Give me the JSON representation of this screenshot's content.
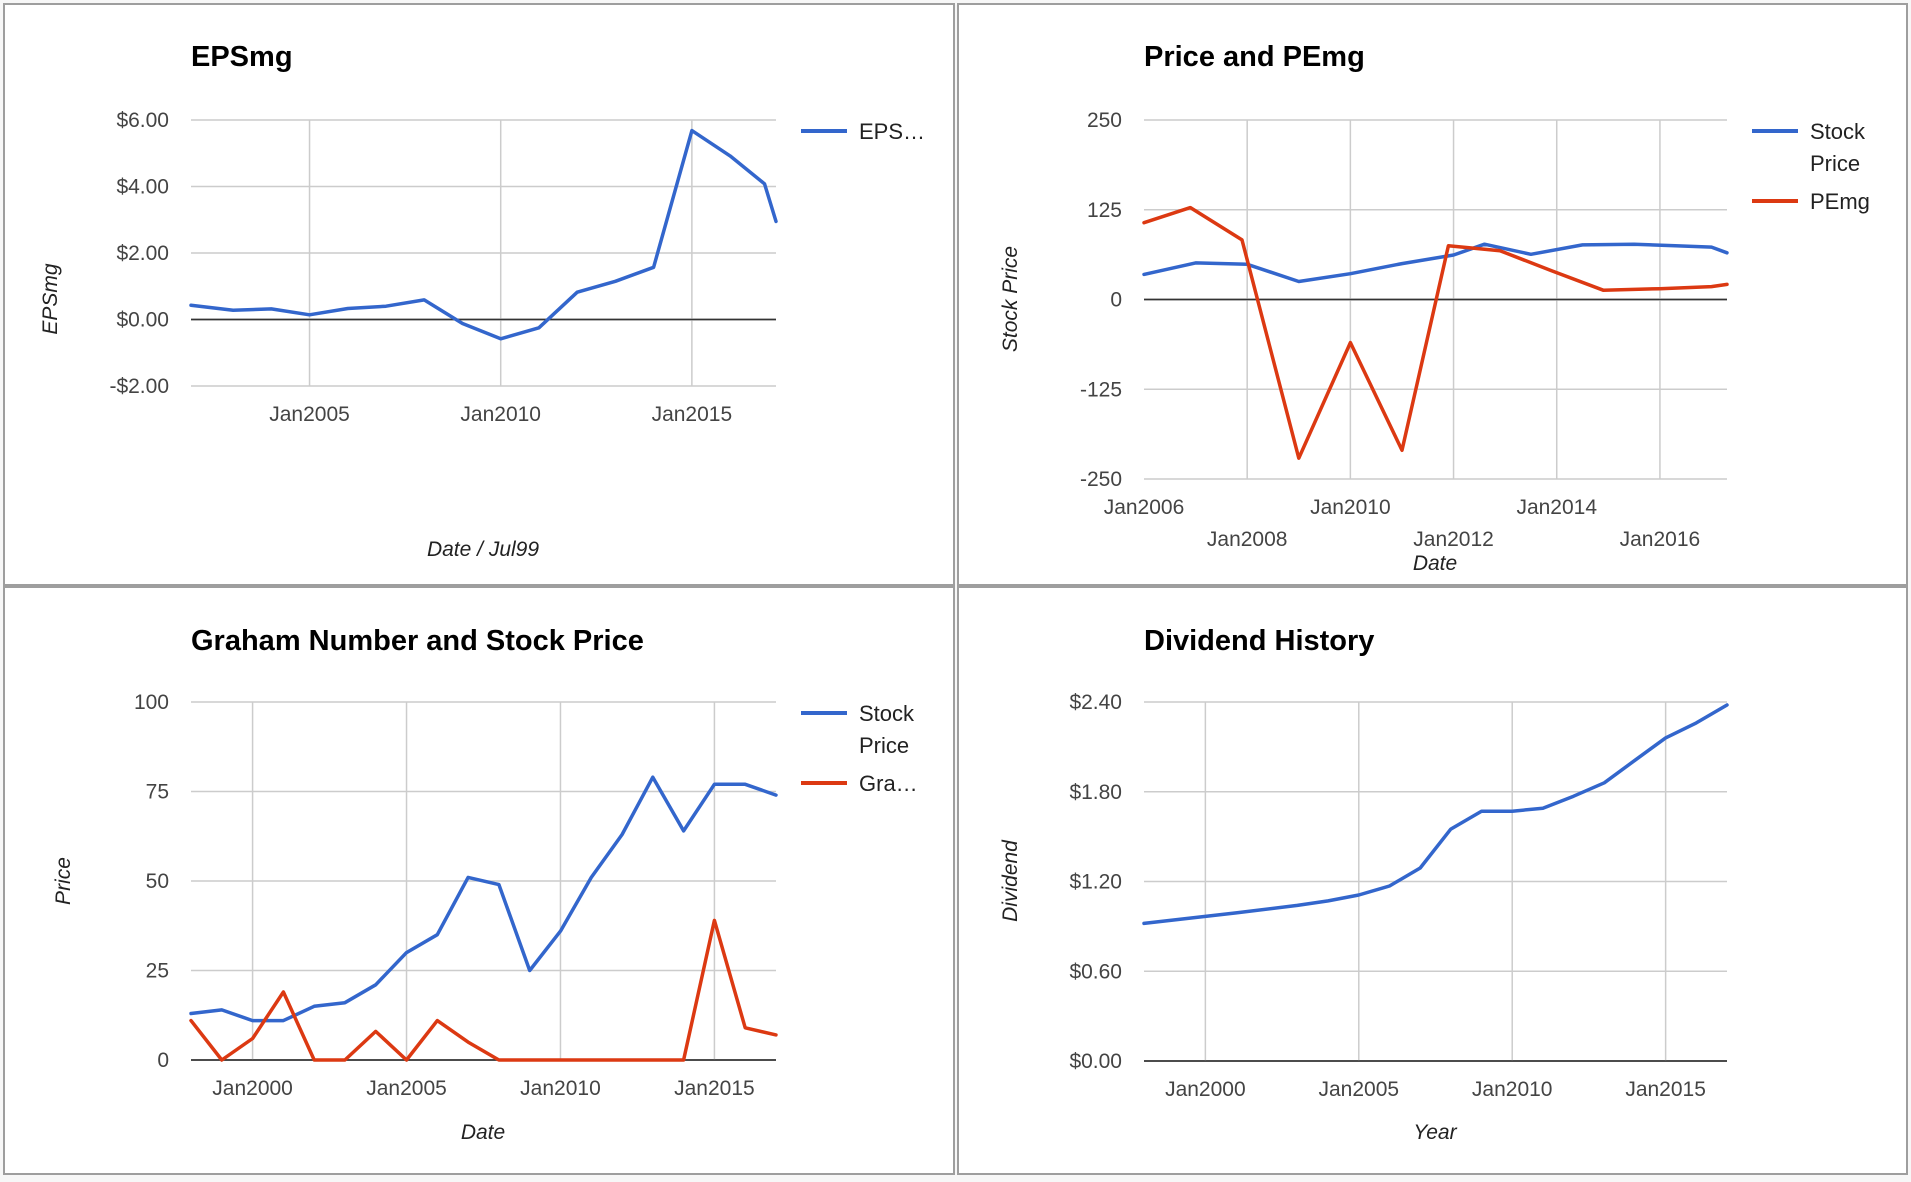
{
  "colors": {
    "blue": "#3366cc",
    "red": "#dc3912"
  },
  "chart_data": [
    {
      "type": "line",
      "title": "EPSmg",
      "xlabel": "Date / Jul99",
      "ylabel": "EPSmg",
      "xlim": [
        2001.9,
        2017.2
      ],
      "ylim": [
        -2.0,
        6.0
      ],
      "y_ticks": [
        {
          "v": 6,
          "label": "$6.00"
        },
        {
          "v": 4,
          "label": "$4.00"
        },
        {
          "v": 2,
          "label": "$2.00"
        },
        {
          "v": 0,
          "label": "$0.00"
        },
        {
          "v": -2,
          "label": "-$2.00"
        }
      ],
      "x_ticks": [
        {
          "v": 2005,
          "label": "Jan2005",
          "row": 0
        },
        {
          "v": 2010,
          "label": "Jan2010",
          "row": 0
        },
        {
          "v": 2015,
          "label": "Jan2015",
          "row": 0
        }
      ],
      "legend": "right",
      "series": [
        {
          "name": "EPS…",
          "color": "#3366cc",
          "x": [
            2001.9,
            2003,
            2004,
            2005,
            2006,
            2007,
            2008,
            2009,
            2010,
            2011,
            2012,
            2013,
            2014,
            2015,
            2016,
            2016.9,
            2017.2
          ],
          "y": [
            0.43,
            0.28,
            0.32,
            0.14,
            0.33,
            0.4,
            0.59,
            -0.12,
            -0.58,
            -0.25,
            0.82,
            1.15,
            1.57,
            5.68,
            4.92,
            4.08,
            2.95
          ]
        }
      ]
    },
    {
      "type": "line",
      "title": "Price and PEmg",
      "xlabel": "Date",
      "ylabel": "Stock Price",
      "xlim": [
        2006,
        2017.3
      ],
      "ylim": [
        -250,
        250
      ],
      "y_ticks": [
        {
          "v": 250,
          "label": "250"
        },
        {
          "v": 125,
          "label": "125"
        },
        {
          "v": 0,
          "label": "0"
        },
        {
          "v": -125,
          "label": "-125"
        },
        {
          "v": -250,
          "label": "-250"
        }
      ],
      "x_ticks": [
        {
          "v": 2006,
          "label": "Jan2006",
          "row": 0
        },
        {
          "v": 2008,
          "label": "Jan2008",
          "row": 1
        },
        {
          "v": 2010,
          "label": "Jan2010",
          "row": 0
        },
        {
          "v": 2012,
          "label": "Jan2012",
          "row": 1
        },
        {
          "v": 2014,
          "label": "Jan2014",
          "row": 0
        },
        {
          "v": 2016,
          "label": "Jan2016",
          "row": 1
        }
      ],
      "legend": "right",
      "series": [
        {
          "name": "Stock Price",
          "color": "#3366cc",
          "x": [
            2006,
            2007,
            2008,
            2009,
            2010,
            2011,
            2012,
            2012.6,
            2013.5,
            2014.5,
            2015.5,
            2016.3,
            2017,
            2017.3
          ],
          "y": [
            35,
            51,
            49,
            25,
            36,
            50,
            62,
            77,
            63,
            76,
            77,
            75,
            73,
            65
          ]
        },
        {
          "name": "PEmg",
          "color": "#dc3912",
          "x": [
            2006,
            2006.9,
            2007.9,
            2009,
            2010,
            2011,
            2011.9,
            2012.9,
            2013.9,
            2014.9,
            2016,
            2017,
            2017.3
          ],
          "y": [
            107,
            128,
            83,
            -221,
            -60,
            -210,
            75,
            68,
            40,
            13,
            15,
            18,
            21
          ]
        }
      ]
    },
    {
      "type": "line",
      "title": "Graham Number and Stock Price",
      "xlabel": "Date",
      "ylabel": "Price",
      "xlim": [
        1998,
        2017
      ],
      "ylim": [
        0,
        100
      ],
      "y_ticks": [
        {
          "v": 100,
          "label": "100"
        },
        {
          "v": 75,
          "label": "75"
        },
        {
          "v": 50,
          "label": "50"
        },
        {
          "v": 25,
          "label": "25"
        },
        {
          "v": 0,
          "label": "0"
        }
      ],
      "x_ticks": [
        {
          "v": 2000,
          "label": "Jan2000",
          "row": 0
        },
        {
          "v": 2005,
          "label": "Jan2005",
          "row": 0
        },
        {
          "v": 2010,
          "label": "Jan2010",
          "row": 0
        },
        {
          "v": 2015,
          "label": "Jan2015",
          "row": 0
        }
      ],
      "legend": "right",
      "series": [
        {
          "name": "Stock Price",
          "color": "#3366cc",
          "x": [
            1998,
            1999,
            2000,
            2001,
            2002,
            2003,
            2004,
            2005,
            2006,
            2007,
            2008,
            2009,
            2010,
            2011,
            2012,
            2013,
            2014,
            2015,
            2016,
            2017
          ],
          "y": [
            13,
            14,
            11,
            11,
            15,
            16,
            21,
            30,
            35,
            51,
            49,
            25,
            36,
            51,
            63,
            79,
            64,
            77,
            77,
            74
          ]
        },
        {
          "name": "Gra…",
          "color": "#dc3912",
          "x": [
            1998,
            1999,
            2000,
            2001,
            2002,
            2003,
            2004,
            2005,
            2006,
            2007,
            2008,
            2009,
            2010,
            2011,
            2012,
            2013,
            2014,
            2015,
            2016,
            2017
          ],
          "y": [
            11,
            0,
            6,
            19,
            0,
            0,
            8,
            0,
            11,
            5,
            0,
            0,
            0,
            0,
            0,
            0,
            0,
            39,
            9,
            7
          ]
        }
      ]
    },
    {
      "type": "line",
      "title": "Dividend History",
      "xlabel": "Year",
      "ylabel": "Dividend",
      "xlim": [
        1998,
        2017
      ],
      "ylim": [
        0,
        2.4
      ],
      "y_ticks": [
        {
          "v": 2.4,
          "label": "$2.40"
        },
        {
          "v": 1.8,
          "label": "$1.80"
        },
        {
          "v": 1.2,
          "label": "$1.20"
        },
        {
          "v": 0.6,
          "label": "$0.60"
        },
        {
          "v": 0,
          "label": "$0.00"
        }
      ],
      "x_ticks": [
        {
          "v": 2000,
          "label": "Jan2000",
          "row": 0
        },
        {
          "v": 2005,
          "label": "Jan2005",
          "row": 0
        },
        {
          "v": 2010,
          "label": "Jan2010",
          "row": 0
        },
        {
          "v": 2015,
          "label": "Jan2015",
          "row": 0
        }
      ],
      "legend": "none",
      "series": [
        {
          "name": "",
          "color": "#3366cc",
          "x": [
            1998,
            2001,
            2003,
            2004,
            2005,
            2006,
            2007,
            2008,
            2009,
            2010,
            2011,
            2012,
            2013,
            2014,
            2015,
            2016,
            2017
          ],
          "y": [
            0.92,
            0.99,
            1.04,
            1.07,
            1.11,
            1.17,
            1.29,
            1.55,
            1.67,
            1.67,
            1.69,
            1.77,
            1.86,
            2.01,
            2.16,
            2.26,
            2.38
          ]
        }
      ]
    }
  ]
}
